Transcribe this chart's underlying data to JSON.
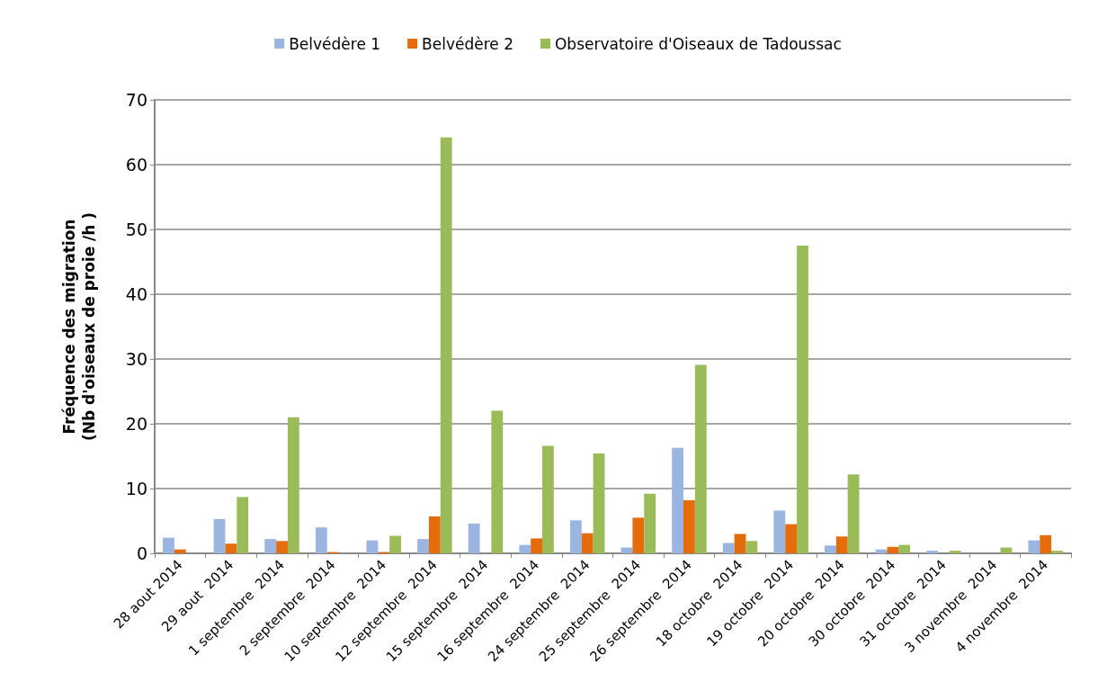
{
  "chart_data": {
    "type": "bar",
    "ylabel": "Fréquence des migration\n(Nb d'oiseaux de proie /h )",
    "categories": [
      "28 aout 2014",
      "29 aout  2014",
      "1 septembre  2014",
      "2 septembre  2014",
      "10 septembre  2014",
      "12 septembre  2014",
      "15 septembre  2014",
      "16 septembre  2014",
      "24 septembre  2014",
      "25 septembre  2014",
      "26 septembre  2014",
      "18 octobre  2014",
      "19 octobre  2014",
      "20 octobre  2014",
      "30 octobre  2014",
      "31 octobre  2014",
      "3 novembre  2014",
      "4 novembre  2014"
    ],
    "series": [
      {
        "name": "Belvédère 1",
        "color": "#9ab5e0",
        "values": [
          2.4,
          5.3,
          2.2,
          4.0,
          2.0,
          2.2,
          4.6,
          1.3,
          5.1,
          0.9,
          16.3,
          1.6,
          6.6,
          1.2,
          0.6,
          0.4,
          0,
          2.0
        ]
      },
      {
        "name": "Belvédère 2",
        "color": "#e46c0a",
        "values": [
          0.6,
          1.5,
          1.9,
          0.2,
          0.2,
          5.7,
          0,
          2.3,
          3.1,
          5.5,
          8.2,
          3.0,
          4.5,
          2.6,
          1.0,
          0,
          0,
          2.8
        ]
      },
      {
        "name": "Observatoire d'Oiseaux de Tadoussac",
        "color": "#9bbb59",
        "values": [
          0,
          8.7,
          21,
          0,
          2.7,
          64.2,
          22,
          16.6,
          15.4,
          9.2,
          29.1,
          1.9,
          47.5,
          12.2,
          1.3,
          0.4,
          0.9,
          0.4
        ]
      }
    ],
    "ylim": [
      0,
      70
    ],
    "yticks": [
      0,
      10,
      20,
      30,
      40,
      50,
      60,
      70
    ],
    "grid": "y",
    "legend": "top"
  }
}
